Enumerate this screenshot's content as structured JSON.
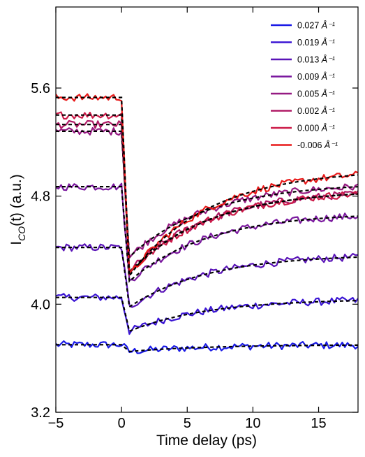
{
  "chart_data": {
    "type": "line",
    "xlabel": "Time delay (ps)",
    "ylabel_main": "I",
    "ylabel_sub": "CO",
    "ylabel_tail": "(t) (a.u.)",
    "xlim": [
      -5,
      18
    ],
    "ylim": [
      3.2,
      6.2
    ],
    "xticks": [
      -5,
      0,
      5,
      10,
      15
    ],
    "yticks": [
      3.2,
      4.0,
      4.8,
      5.6
    ],
    "ytick_labels": [
      "3.2",
      "4.0",
      "4.8",
      "5.6"
    ],
    "xtick_labels": [
      "−5",
      "0",
      "5",
      "10",
      "15"
    ],
    "legend_position": "top-right",
    "legend_unit": "Å⁻¹",
    "fit_style": "black dashed",
    "series": [
      {
        "name": "0.027",
        "color": "#1a1ae6",
        "baseline": 3.7,
        "drop": 0.05,
        "recovery": 0.05
      },
      {
        "name": "0.019",
        "color": "#3a14d4",
        "baseline": 4.05,
        "drop": 0.25,
        "recovery": 0.24
      },
      {
        "name": "0.013",
        "color": "#5a14b8",
        "baseline": 4.42,
        "drop": 0.44,
        "recovery": 0.39
      },
      {
        "name": "0.009",
        "color": "#7a189e",
        "baseline": 4.87,
        "drop": 0.7,
        "recovery": 0.51
      },
      {
        "name": "0.005",
        "color": "#961a82",
        "baseline": 5.28,
        "drop": 0.93,
        "recovery": 0.55
      },
      {
        "name": "0.002",
        "color": "#b01a66",
        "baseline": 5.33,
        "drop": 1.09,
        "recovery": 0.61
      },
      {
        "name": "0.000",
        "color": "#cc1a48",
        "baseline": 5.4,
        "drop": 1.17,
        "recovery": 0.62
      },
      {
        "name": "-0.006",
        "color": "#e81818",
        "baseline": 5.53,
        "drop": 1.32,
        "recovery": 0.79
      }
    ]
  }
}
